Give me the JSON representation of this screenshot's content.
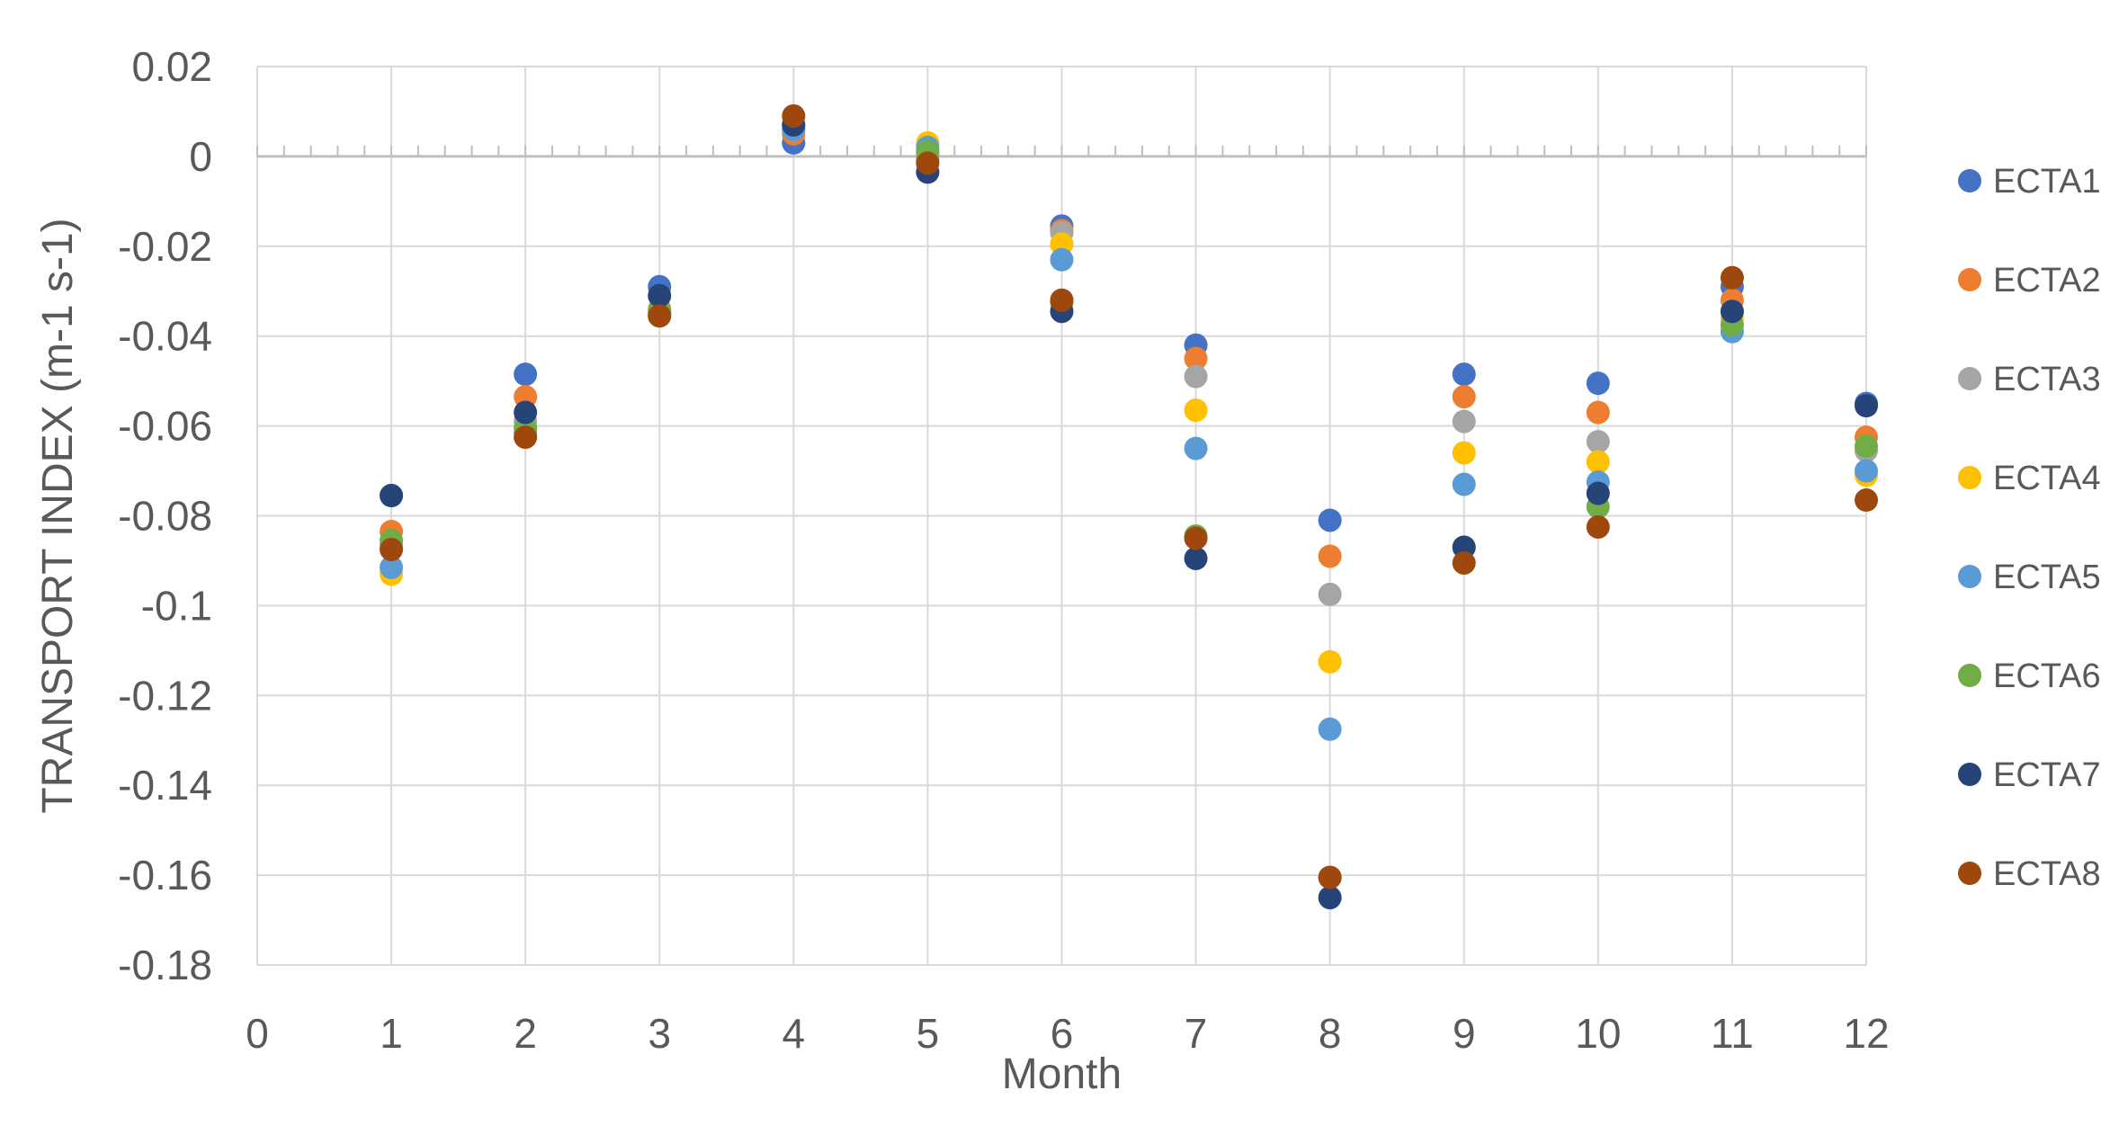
{
  "chart_data": {
    "type": "scatter",
    "title": "",
    "xlabel": "Month",
    "ylabel": "TRANSPORT INDEX (m-1 s-1)",
    "xlim": [
      0,
      12
    ],
    "ylim": [
      -0.18,
      0.02
    ],
    "xticks": [
      0,
      1,
      2,
      3,
      4,
      5,
      6,
      7,
      8,
      9,
      10,
      11,
      12
    ],
    "xtick_labels": [
      "0",
      "1",
      "2",
      "3",
      "4",
      "5",
      "6",
      "7",
      "8",
      "9",
      "10",
      "11",
      "12"
    ],
    "yticks": [
      0.02,
      0,
      -0.02,
      -0.04,
      -0.06,
      -0.08,
      -0.1,
      -0.12,
      -0.14,
      -0.16,
      -0.18
    ],
    "ytick_labels": [
      "0.02",
      "0",
      "-0.02",
      "-0.04",
      "-0.06",
      "-0.08",
      "-0.1",
      "-0.12",
      "-0.14",
      "-0.16",
      "-0.18"
    ],
    "grid": true,
    "legend_position": "right",
    "x": [
      1,
      2,
      3,
      4,
      5,
      6,
      7,
      8,
      9,
      10,
      11,
      12
    ],
    "series": [
      {
        "name": "ECTA1",
        "color": "#4472C4",
        "values": [
          -0.0755,
          -0.0485,
          -0.029,
          0.003,
          -0.001,
          -0.0155,
          -0.042,
          -0.081,
          -0.0485,
          -0.0505,
          -0.029,
          -0.055
        ]
      },
      {
        "name": "ECTA2",
        "color": "#ED7D31",
        "values": [
          -0.0835,
          -0.0535,
          -0.034,
          0.005,
          0.0,
          -0.0165,
          -0.045,
          -0.089,
          -0.0535,
          -0.057,
          -0.032,
          -0.0625
        ]
      },
      {
        "name": "ECTA3",
        "color": "#A5A5A5",
        "values": [
          -0.0865,
          -0.059,
          -0.0345,
          0.006,
          0.001,
          -0.017,
          -0.049,
          -0.0975,
          -0.059,
          -0.0635,
          -0.0345,
          -0.0655
        ]
      },
      {
        "name": "ECTA4",
        "color": "#FFC000",
        "values": [
          -0.093,
          -0.0605,
          -0.0355,
          0.007,
          0.003,
          -0.0195,
          -0.0565,
          -0.1125,
          -0.066,
          -0.068,
          -0.036,
          -0.071
        ]
      },
      {
        "name": "ECTA5",
        "color": "#5B9BD5",
        "values": [
          -0.0915,
          -0.0615,
          -0.035,
          0.006,
          0.002,
          -0.023,
          -0.065,
          -0.1275,
          -0.073,
          -0.0725,
          -0.039,
          -0.07
        ]
      },
      {
        "name": "ECTA6",
        "color": "#70AD47",
        "values": [
          -0.0855,
          -0.0605,
          -0.0345,
          0.007,
          0.001,
          -0.0325,
          -0.0845,
          -0.1605,
          -0.087,
          -0.078,
          -0.0375,
          -0.0645
        ]
      },
      {
        "name": "ECTA7",
        "color": "#264478",
        "values": [
          -0.0755,
          -0.057,
          -0.031,
          0.007,
          -0.0035,
          -0.0345,
          -0.0895,
          -0.165,
          -0.087,
          -0.075,
          -0.0345,
          -0.0555
        ]
      },
      {
        "name": "ECTA8",
        "color": "#9E480E",
        "values": [
          -0.0875,
          -0.0625,
          -0.0355,
          0.009,
          -0.0015,
          -0.032,
          -0.085,
          -0.1605,
          -0.0905,
          -0.0825,
          -0.027,
          -0.0765
        ]
      }
    ]
  }
}
